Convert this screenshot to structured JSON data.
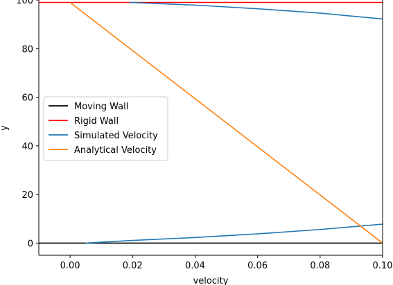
{
  "chart_data": {
    "type": "line",
    "title": "",
    "xlabel": "velocity",
    "ylabel": "y",
    "xlim": [
      -0.01,
      0.1
    ],
    "ylim": [
      -5,
      100
    ],
    "x_ticks": [
      0.0,
      0.02,
      0.04,
      0.06,
      0.08,
      0.1
    ],
    "x_tick_labels": [
      "0.00",
      "0.02",
      "0.04",
      "0.06",
      "0.08",
      "0.10"
    ],
    "y_ticks": [
      0,
      20,
      40,
      60,
      80,
      100
    ],
    "y_tick_labels": [
      "0",
      "20",
      "40",
      "60",
      "80",
      "100"
    ],
    "grid": false,
    "legend_position": "center-left",
    "series": [
      {
        "name": "Moving Wall",
        "color": "#000000",
        "x": [
          -0.01,
          0.1
        ],
        "y": [
          0,
          0
        ]
      },
      {
        "name": "Rigid Wall",
        "color": "#ff0000",
        "x": [
          -0.01,
          0.1
        ],
        "y": [
          99,
          99
        ]
      },
      {
        "name": "Simulated Velocity",
        "color": "#1f77b4",
        "segments": [
          {
            "x": [
              0.005,
              0.02,
              0.04,
              0.06,
              0.08,
              0.1
            ],
            "y": [
              0,
              1.1,
              2.3,
              3.8,
              5.6,
              7.8
            ]
          },
          {
            "x": [
              0.019,
              0.04,
              0.06,
              0.08,
              0.1
            ],
            "y": [
              99,
              97.9,
              96.4,
              94.6,
              92.2
            ]
          }
        ]
      },
      {
        "name": "Analytical Velocity",
        "color": "#ff7f0e",
        "x": [
          0.0,
          0.1
        ],
        "y": [
          99,
          0
        ]
      }
    ]
  }
}
